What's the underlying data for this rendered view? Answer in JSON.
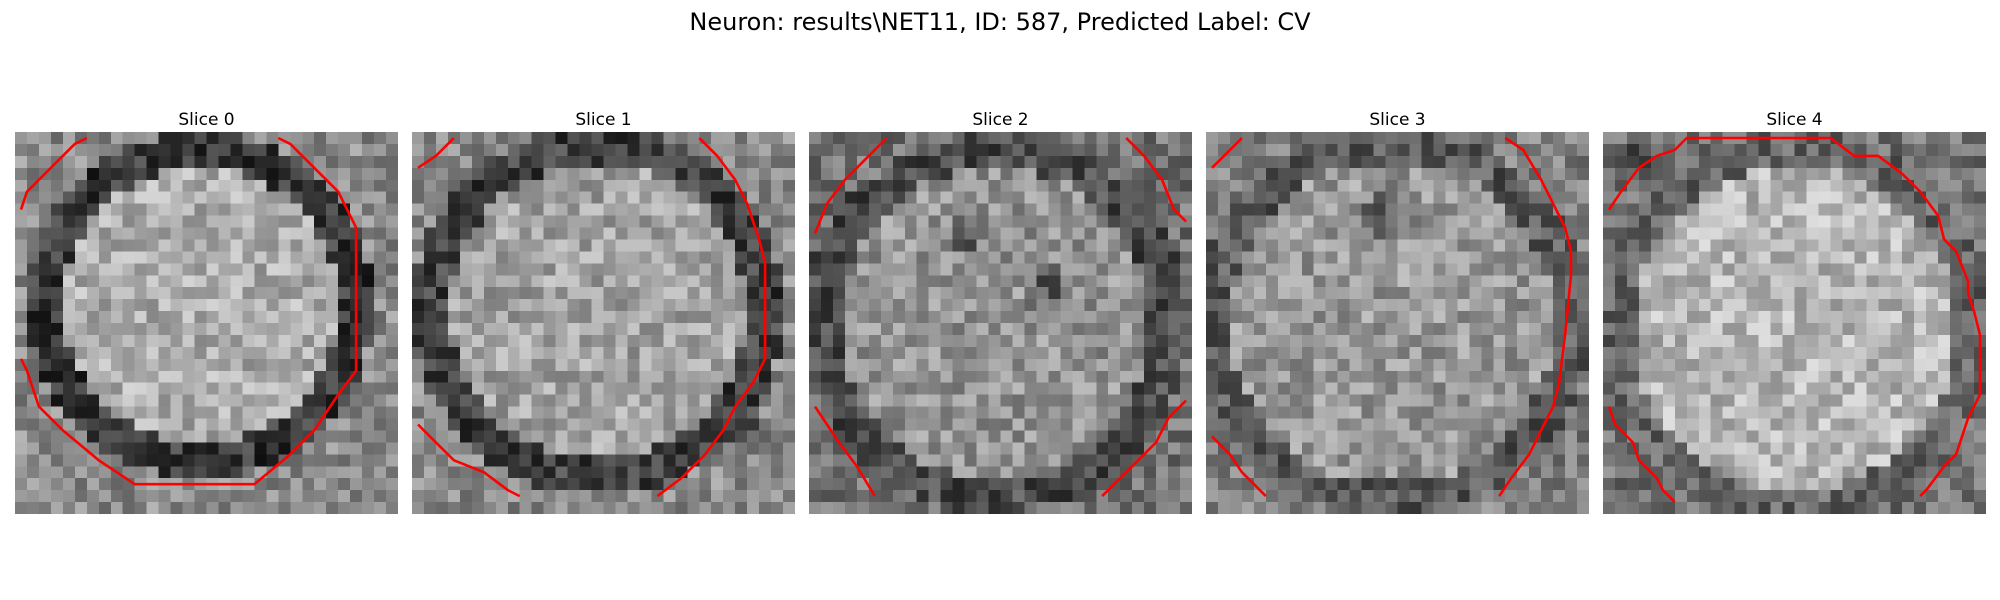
{
  "figure": {
    "suptitle": "Neuron: results\\NET11, ID: 587, Predicted Label: CV",
    "colormap": "grayscale",
    "contour_color": "#ff0000",
    "panels": [
      {
        "title": "Slice 0"
      },
      {
        "title": "Slice 1"
      },
      {
        "title": "Slice 2"
      },
      {
        "title": "Slice 3"
      },
      {
        "title": "Slice 4"
      }
    ]
  }
}
